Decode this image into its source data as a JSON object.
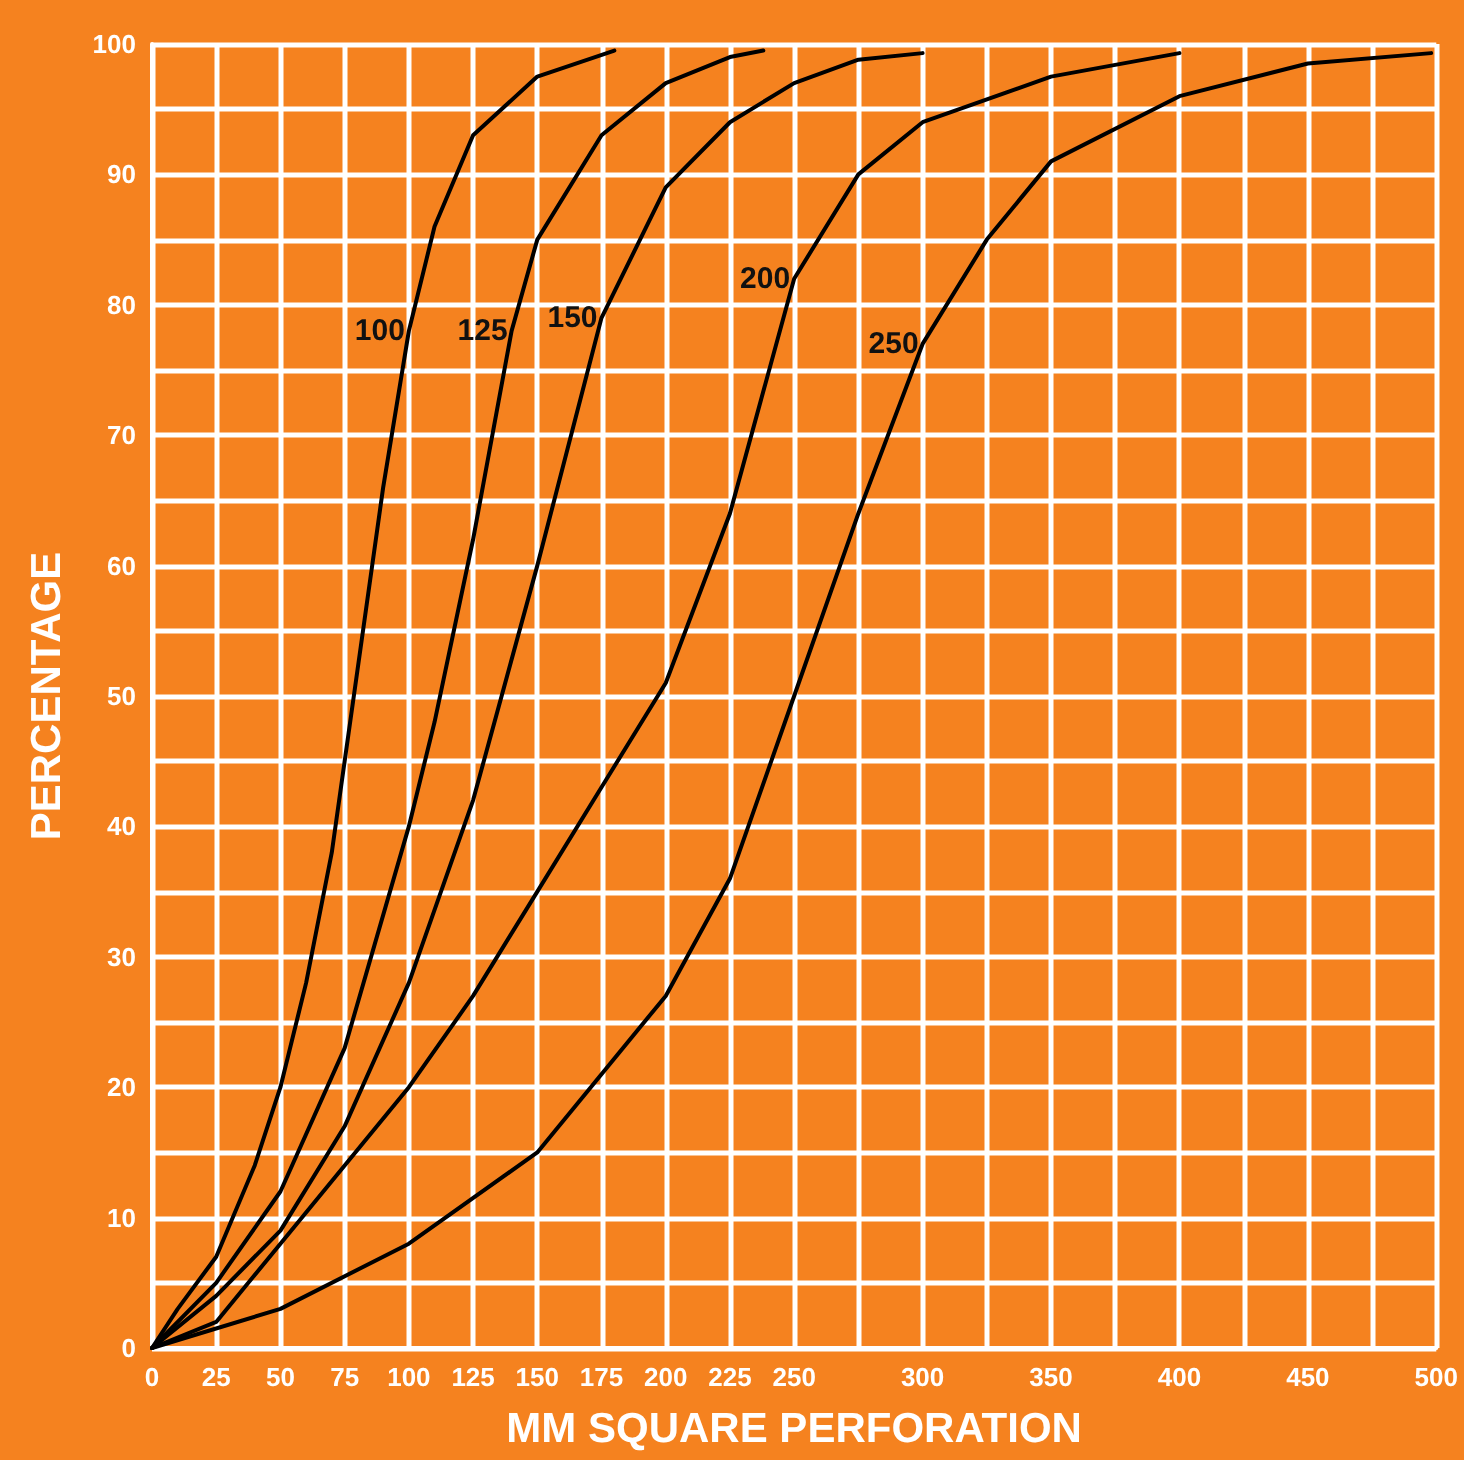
{
  "chart_data": {
    "type": "line",
    "xlabel": "MM SQUARE PERFORATION",
    "ylabel": "PERCENTAGE",
    "xlim": [
      0,
      500
    ],
    "xticks": [
      0,
      25,
      50,
      75,
      100,
      125,
      150,
      175,
      200,
      225,
      250,
      {
        "value": 275,
        "label": null
      },
      300,
      {
        "value": 325,
        "label": null
      },
      350,
      {
        "value": 375,
        "label": null
      },
      400,
      {
        "value": 425,
        "label": null
      },
      450,
      {
        "value": 475,
        "label": null
      },
      500
    ],
    "ylim": [
      0,
      100
    ],
    "yticks": [
      0,
      {
        "value": 5,
        "label": null
      },
      10,
      {
        "value": 15,
        "label": null
      },
      20,
      {
        "value": 25,
        "label": null
      },
      30,
      {
        "value": 35,
        "label": null
      },
      40,
      {
        "value": 45,
        "label": null
      },
      50,
      {
        "value": 55,
        "label": null
      },
      60,
      {
        "value": 65,
        "label": null
      },
      70,
      {
        "value": 75,
        "label": null
      },
      80,
      {
        "value": 85,
        "label": null
      },
      90,
      {
        "value": 95,
        "label": null
      },
      100
    ],
    "grid": true,
    "legend": false,
    "marker": "none",
    "line_style": "solid",
    "series": [
      {
        "name": "100",
        "color": "#000000",
        "x": [
          0,
          10,
          25,
          40,
          50,
          60,
          70,
          80,
          90,
          100,
          110,
          125,
          150,
          180
        ],
        "values": [
          0,
          3,
          7,
          14,
          20,
          28,
          38,
          52,
          66,
          78,
          86,
          93,
          97.5,
          99.5
        ]
      },
      {
        "name": "125",
        "color": "#000000",
        "x": [
          0,
          25,
          50,
          75,
          100,
          110,
          125,
          140,
          150,
          175,
          200,
          225,
          238
        ],
        "values": [
          0,
          5,
          12,
          23,
          40,
          48,
          62,
          78,
          85,
          93,
          97,
          99,
          99.5
        ]
      },
      {
        "name": "150",
        "color": "#000000",
        "x": [
          0,
          25,
          50,
          75,
          100,
          125,
          150,
          175,
          200,
          225,
          250,
          275,
          300
        ],
        "values": [
          0,
          4,
          9,
          17,
          28,
          42,
          60,
          79,
          89,
          94,
          97,
          98.8,
          99.3
        ]
      },
      {
        "name": "200",
        "color": "#000000",
        "x": [
          0,
          25,
          50,
          75,
          100,
          125,
          150,
          175,
          200,
          225,
          250,
          275,
          300,
          350,
          400
        ],
        "values": [
          0,
          2,
          8,
          14,
          20,
          27,
          35,
          43,
          51,
          64,
          82,
          90,
          94,
          97.5,
          99.3
        ]
      },
      {
        "name": "250",
        "color": "#000000",
        "x": [
          0,
          50,
          100,
          150,
          200,
          225,
          250,
          275,
          300,
          325,
          350,
          400,
          450,
          498
        ],
        "values": [
          0,
          3,
          8,
          15,
          27,
          36,
          50,
          64,
          77,
          85,
          91,
          96,
          98.5,
          99.3
        ]
      }
    ]
  }
}
